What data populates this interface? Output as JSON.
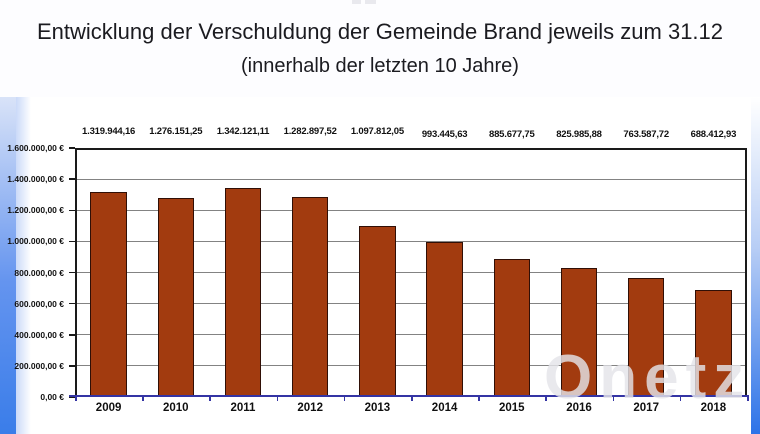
{
  "page": {
    "title_line1": "Entwicklung der Verschuldung der Gemeinde Brand jeweils zum 31.12",
    "title_line2": "(innerhalb der letzten 10 Jahre)"
  },
  "chart_data": {
    "type": "bar",
    "title": "Entwicklung der Verschuldung der Gemeinde Brand jeweils zum 31.12 (innerhalb der letzten 10 Jahre)",
    "xlabel": "",
    "ylabel": "",
    "categories": [
      "2009",
      "2010",
      "2011",
      "2012",
      "2013",
      "2014",
      "2015",
      "2016",
      "2017",
      "2018"
    ],
    "values": [
      1319944.16,
      1276151.25,
      1342121.11,
      1282897.52,
      1097812.05,
      993445.63,
      885677.75,
      825985.88,
      763587.72,
      688412.93
    ],
    "value_labels": [
      "1.319.944,16",
      "1.276.151,25",
      "1.342.121,11",
      "1.282.897,52",
      "1.097.812,05",
      "993.445,63",
      "885.677,75",
      "825.985,88",
      "763.587,72",
      "688.412,93"
    ],
    "y_tick_labels": [
      "1.600.000,00 €",
      "1.400.000,00 €",
      "1.200.000,00 €",
      "1.000.000,00 €",
      "800.000,00 €",
      "600.000,00 €",
      "400.000,00 €",
      "200.000,00 €",
      "0,00 €"
    ],
    "ylim": [
      0,
      1600000
    ],
    "grid": true,
    "legend": "none",
    "bar_color": "#A23B0F",
    "bar_border_color": "#300F06",
    "gridline_color": "#838383",
    "plot_border_color": "#1A1A1A",
    "baseline_color": "#3434A4"
  },
  "watermark": {
    "text": "Onetz"
  }
}
